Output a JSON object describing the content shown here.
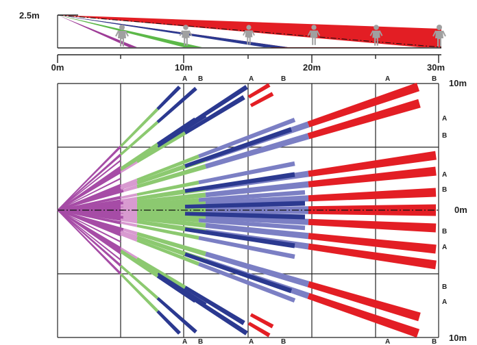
{
  "side_view": {
    "height_label": "2.5m",
    "distance_labels": [
      "0m",
      "10m",
      "20m",
      "30m"
    ],
    "colors": {
      "red": "#e31e24",
      "blue": "#2b3990",
      "green": "#5cb848",
      "purple": "#9e3c97",
      "person": "#a0a0a0"
    }
  },
  "top_view": {
    "right_labels": [
      "10m",
      "0m",
      "10m"
    ],
    "zone_labels_right": [
      "A",
      "B",
      "A",
      "B",
      "B",
      "A",
      "B",
      "A"
    ],
    "zone_labels_top": [
      "A",
      "B",
      "A",
      "B",
      "A",
      "B"
    ],
    "zone_labels_bottom": [
      "A",
      "B",
      "A",
      "B",
      "A",
      "B"
    ],
    "colors": {
      "red": "#e31e24",
      "darkblue": "#2b3990",
      "lightblue": "#7b7fc4",
      "green": "#8cc970",
      "purple": "#a64ca6",
      "pink": "#d89ad0"
    }
  }
}
